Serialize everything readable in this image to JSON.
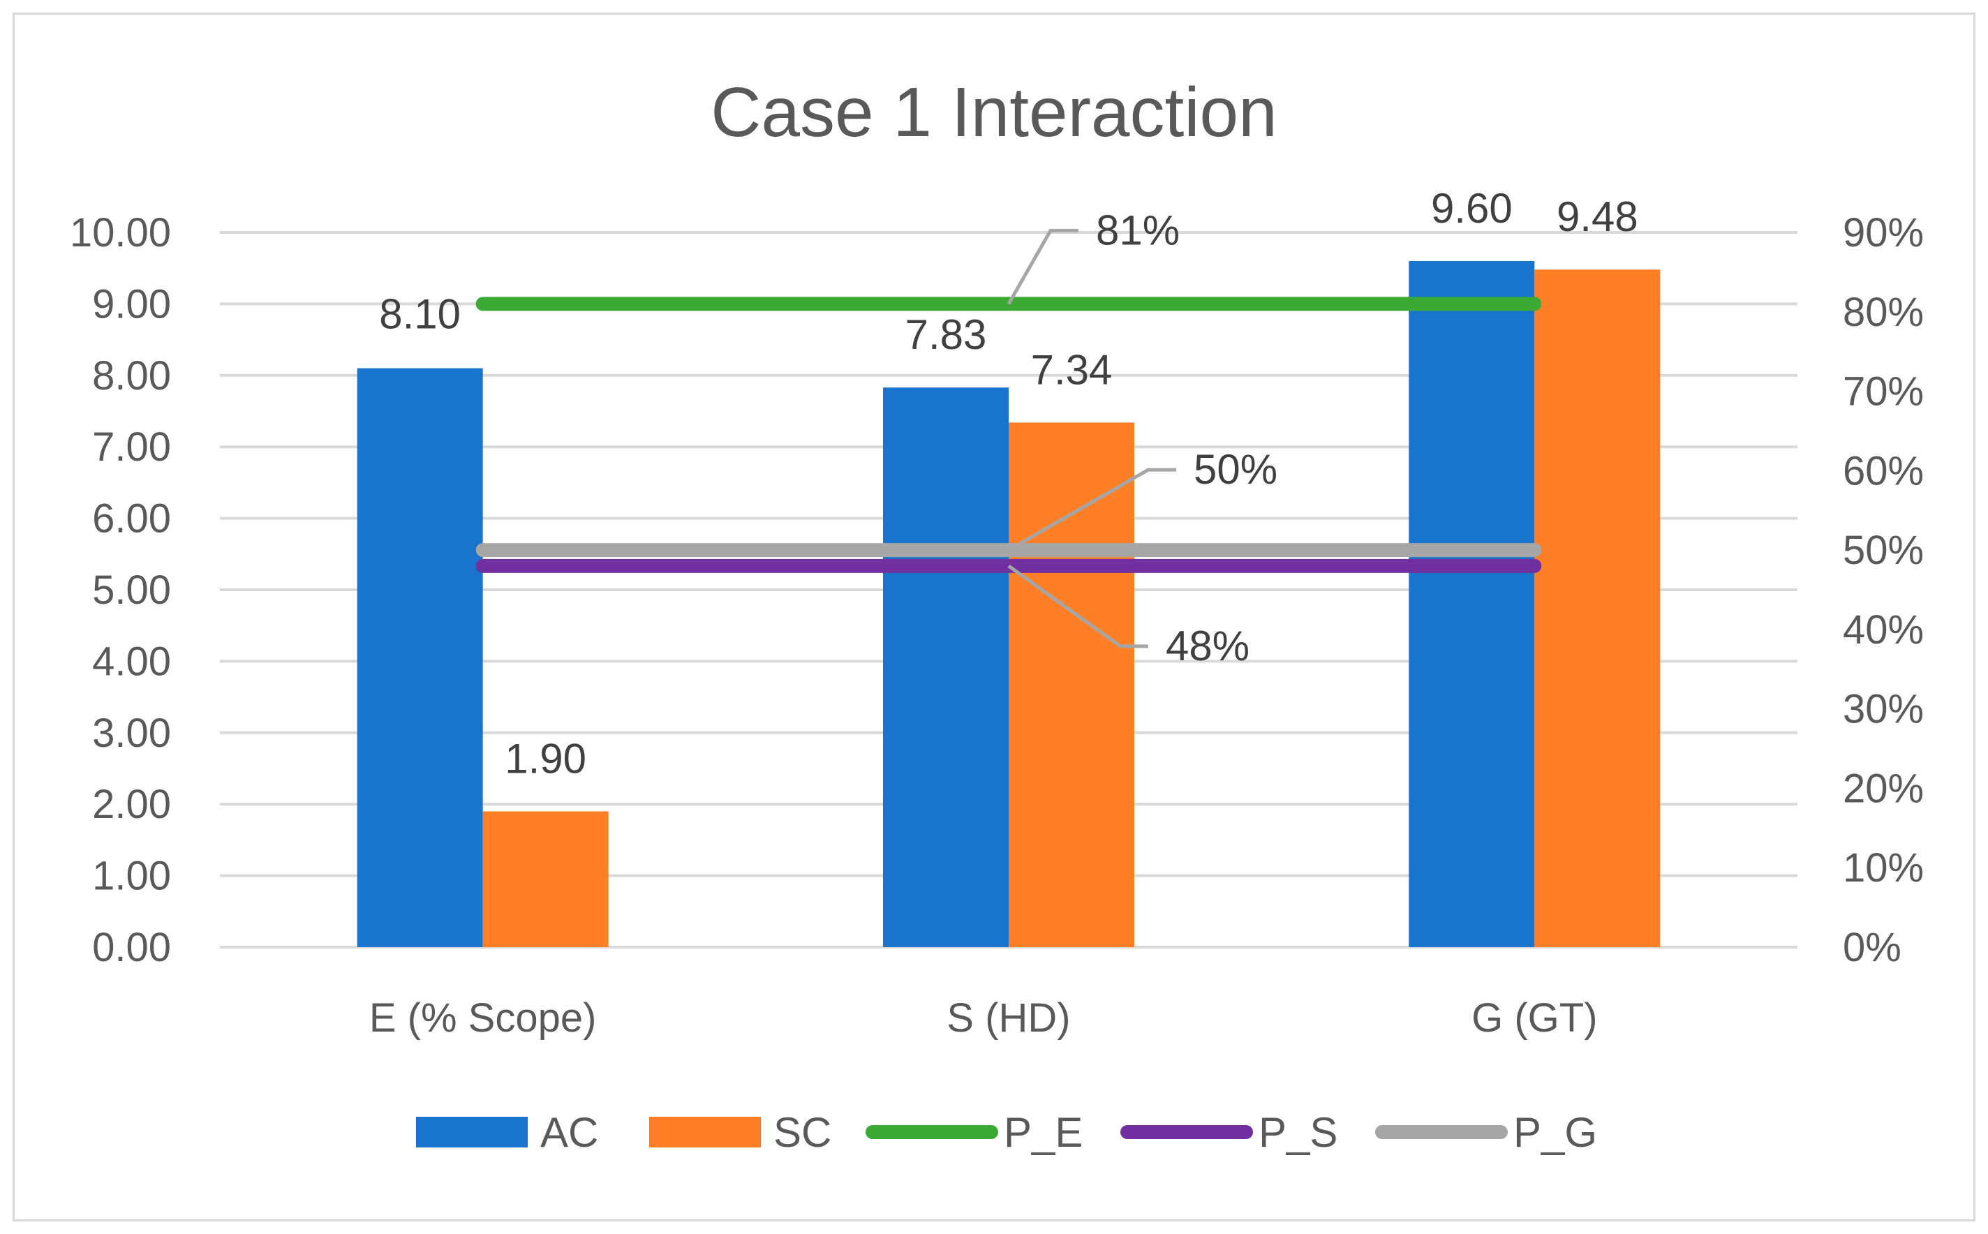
{
  "chart_data": {
    "type": "bar",
    "title": "Case 1 Interaction",
    "categories": [
      "E (% Scope)",
      "S (HD)",
      "G (GT)"
    ],
    "y_left": {
      "min": 0,
      "max": 10,
      "step": 1,
      "tick_labels": [
        "0.00",
        "1.00",
        "2.00",
        "3.00",
        "4.00",
        "5.00",
        "6.00",
        "7.00",
        "8.00",
        "9.00",
        "10.00"
      ]
    },
    "y_right": {
      "min": 0,
      "max": 0.9,
      "step": 0.1,
      "tick_labels": [
        "0%",
        "10%",
        "20%",
        "30%",
        "40%",
        "50%",
        "60%",
        "70%",
        "80%",
        "90%"
      ]
    },
    "grid": true,
    "legend_position": "bottom",
    "series": [
      {
        "name": "AC",
        "kind": "bar",
        "axis": "left",
        "color": "#1874CD",
        "values": [
          8.1,
          7.83,
          9.6
        ],
        "labels": [
          "8.10",
          "7.83",
          "9.60"
        ]
      },
      {
        "name": "SC",
        "kind": "bar",
        "axis": "left",
        "color": "#FF7F27",
        "values": [
          1.9,
          7.34,
          9.48
        ],
        "labels": [
          "1.90",
          "7.34",
          "9.48"
        ]
      },
      {
        "name": "P_E",
        "kind": "line",
        "axis": "right",
        "color": "#3BAA35",
        "value": 0.81,
        "label": "81%"
      },
      {
        "name": "P_S",
        "kind": "line",
        "axis": "right",
        "color": "#7030A0",
        "value": 0.48,
        "label": "48%"
      },
      {
        "name": "P_G",
        "kind": "line",
        "axis": "right",
        "color": "#A6A6A6",
        "value": 0.5,
        "label": "50%"
      }
    ]
  },
  "colors": {
    "grid": "#d9d9d9",
    "text": "#595959",
    "leader": "#a6a6a6"
  }
}
